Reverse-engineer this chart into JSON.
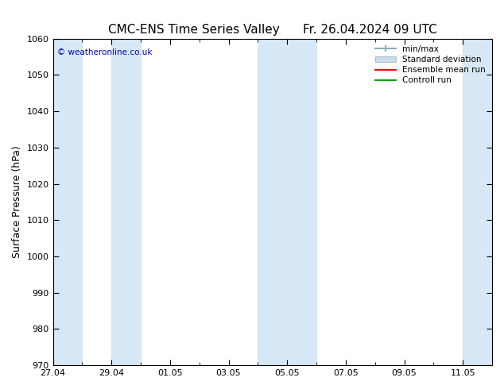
{
  "title_left": "CMC-ENS Time Series Valley",
  "title_right": "Fr. 26.04.2024 09 UTC",
  "ylabel": "Surface Pressure (hPa)",
  "ylim": [
    970,
    1060
  ],
  "yticks": [
    970,
    980,
    990,
    1000,
    1010,
    1020,
    1030,
    1040,
    1050,
    1060
  ],
  "x_start": "2024-04-27",
  "x_end": "2024-05-12",
  "x_tick_labels": [
    "27.04",
    "29.04",
    "01.05",
    "03.05",
    "05.05",
    "07.05",
    "09.05",
    "11.05"
  ],
  "x_tick_dates": [
    "2024-04-27",
    "2024-04-29",
    "2024-05-01",
    "2024-05-03",
    "2024-05-05",
    "2024-05-07",
    "2024-05-09",
    "2024-05-11"
  ],
  "shaded_bands": [
    [
      "2024-04-27",
      "2024-04-28"
    ],
    [
      "2024-04-29",
      "2024-04-30"
    ],
    [
      "2024-05-04",
      "2024-05-06"
    ],
    [
      "2024-05-11",
      "2024-05-13"
    ]
  ],
  "band_color": "#d6e8f5",
  "background_color": "#ffffff",
  "plot_bg_color": "#ffffff",
  "legend_items": [
    {
      "label": "min/max",
      "color": "#b0c8d8",
      "style": "fill"
    },
    {
      "label": "Standard deviation",
      "color": "#c8dce8",
      "style": "fill"
    },
    {
      "label": "Ensemble mean run",
      "color": "#ff0000",
      "style": "line"
    },
    {
      "label": "Controll run",
      "color": "#00aa00",
      "style": "line"
    }
  ],
  "copyright_text": "© weatheronline.co.uk",
  "copyright_color": "#0000cc",
  "title_fontsize": 11,
  "tick_fontsize": 8,
  "ylabel_fontsize": 9,
  "fig_width": 6.34,
  "fig_height": 4.9,
  "dpi": 100
}
